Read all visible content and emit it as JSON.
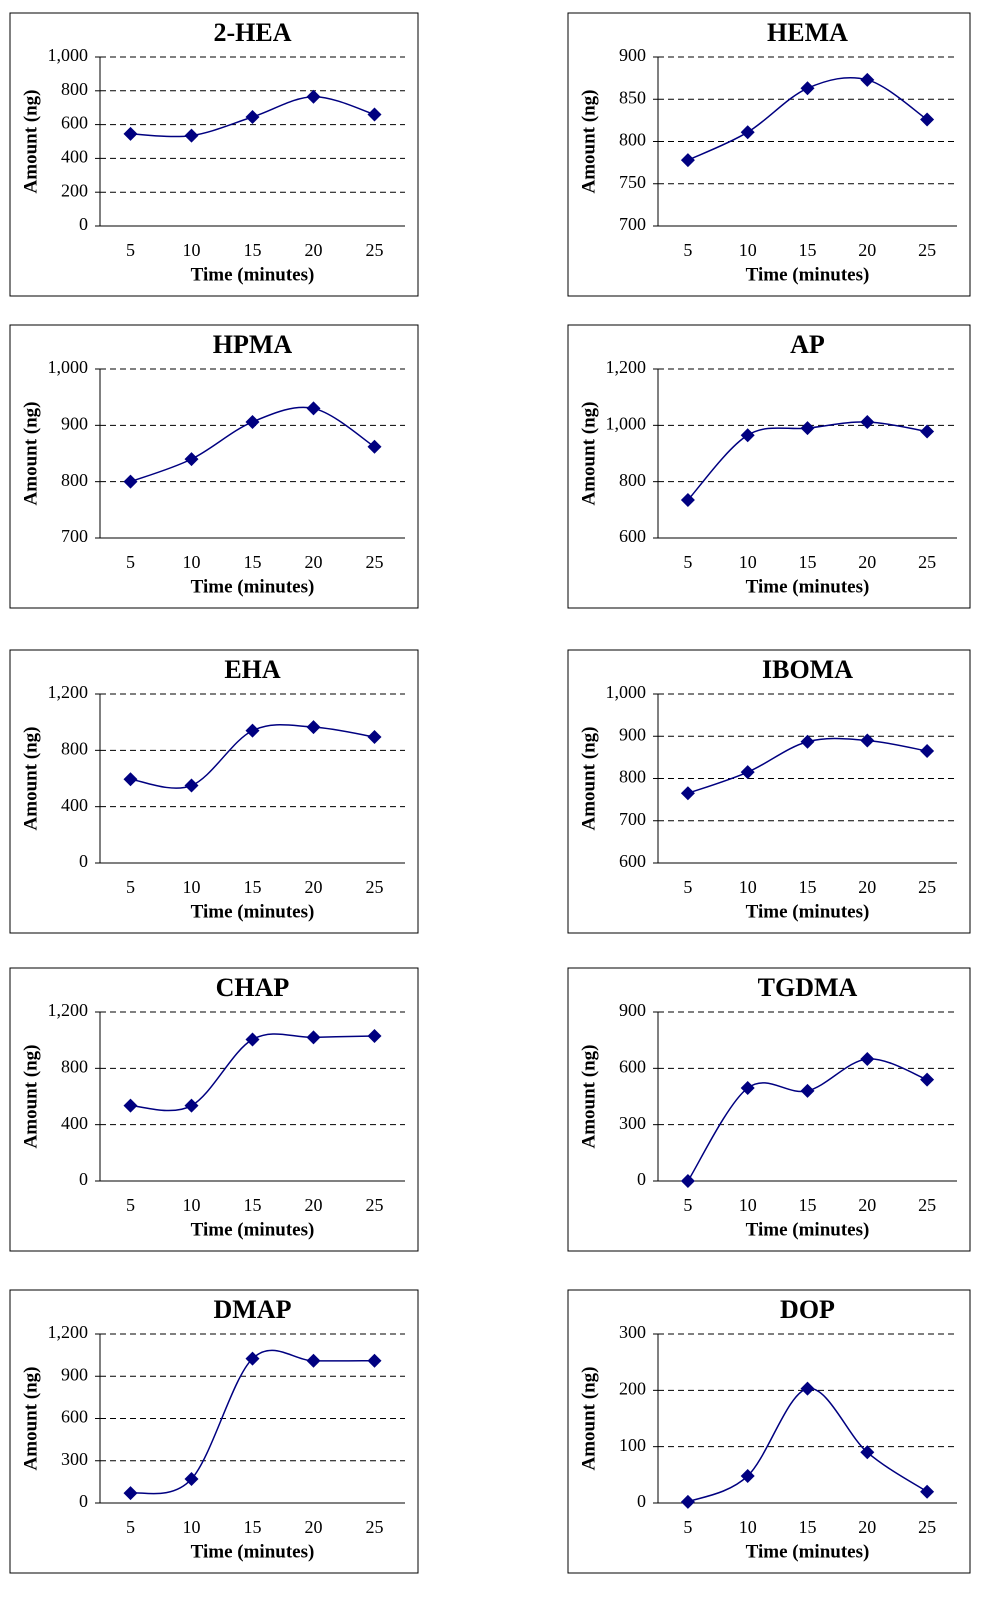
{
  "chart_data": [
    {
      "type": "line",
      "title": "2-HEA",
      "x_label": "Time (minutes)",
      "y_label": "Amount (ng)",
      "categories": [
        "5",
        "10",
        "15",
        "20",
        "25"
      ],
      "series": [
        {
          "color": "#000080",
          "values": [
            545,
            535,
            645,
            765,
            660
          ]
        }
      ],
      "ylim": [
        0,
        1000
      ],
      "yticks": [
        0,
        200,
        400,
        600,
        800,
        {
          "value": 1000,
          "label": "1,000"
        }
      ],
      "grid": true
    },
    {
      "type": "line",
      "title": "HEMA",
      "x_label": "Time (minutes)",
      "y_label": "Amount (ng)",
      "categories": [
        "5",
        "10",
        "15",
        "20",
        "25"
      ],
      "series": [
        {
          "color": "#000080",
          "values": [
            778,
            811,
            863,
            873,
            826
          ]
        }
      ],
      "ylim": [
        700,
        900
      ],
      "yticks": [
        700,
        750,
        800,
        850,
        900
      ],
      "grid": true
    },
    {
      "type": "line",
      "title": "HPMA",
      "x_label": "Time (minutes)",
      "y_label": "Amount (ng)",
      "categories": [
        "5",
        "10",
        "15",
        "20",
        "25"
      ],
      "series": [
        {
          "color": "#000080",
          "values": [
            800,
            840,
            906,
            930,
            862
          ]
        }
      ],
      "ylim": [
        700,
        1000
      ],
      "yticks": [
        700,
        800,
        900,
        {
          "value": 1000,
          "label": "1,000"
        }
      ],
      "grid": true
    },
    {
      "type": "line",
      "title": "AP",
      "x_label": "Time (minutes)",
      "y_label": "Amount (ng)",
      "categories": [
        "5",
        "10",
        "15",
        "20",
        "25"
      ],
      "series": [
        {
          "color": "#000080",
          "values": [
            735,
            965,
            990,
            1012,
            978
          ]
        }
      ],
      "ylim": [
        600,
        1200
      ],
      "yticks": [
        600,
        800,
        {
          "value": 1000,
          "label": "1,000"
        },
        {
          "value": 1200,
          "label": "1,200"
        }
      ],
      "grid": true
    },
    {
      "type": "line",
      "title": "EHA",
      "x_label": "Time (minutes)",
      "y_label": "Amount (ng)",
      "categories": [
        "5",
        "10",
        "15",
        "20",
        "25"
      ],
      "series": [
        {
          "color": "#000080",
          "values": [
            595,
            550,
            940,
            965,
            895
          ]
        }
      ],
      "ylim": [
        0,
        1200
      ],
      "yticks": [
        0,
        400,
        800,
        {
          "value": 1200,
          "label": "1,200"
        }
      ],
      "grid": true
    },
    {
      "type": "line",
      "title": "IBOMA",
      "x_label": "Time (minutes)",
      "y_label": "Amount (ng)",
      "categories": [
        "5",
        "10",
        "15",
        "20",
        "25"
      ],
      "series": [
        {
          "color": "#000080",
          "values": [
            765,
            815,
            887,
            890,
            865
          ]
        }
      ],
      "ylim": [
        600,
        1000
      ],
      "yticks": [
        600,
        700,
        800,
        900,
        {
          "value": 1000,
          "label": "1,000"
        }
      ],
      "grid": true
    },
    {
      "type": "line",
      "title": "CHAP",
      "x_label": "Time (minutes)",
      "y_label": "Amount (ng)",
      "categories": [
        "5",
        "10",
        "15",
        "20",
        "25"
      ],
      "series": [
        {
          "color": "#000080",
          "values": [
            535,
            535,
            1005,
            1020,
            1030
          ]
        }
      ],
      "ylim": [
        0,
        1200
      ],
      "yticks": [
        0,
        400,
        800,
        {
          "value": 1200,
          "label": "1,200"
        }
      ],
      "grid": true
    },
    {
      "type": "line",
      "title": "TGDMA",
      "x_label": "Time (minutes)",
      "y_label": "Amount (ng)",
      "categories": [
        "5",
        "10",
        "15",
        "20",
        "25"
      ],
      "series": [
        {
          "color": "#000080",
          "values": [
            0,
            495,
            480,
            650,
            540
          ]
        }
      ],
      "ylim": [
        0,
        900
      ],
      "yticks": [
        0,
        300,
        600,
        900
      ],
      "grid": true
    },
    {
      "type": "line",
      "title": "DMAP",
      "x_label": "Time (minutes)",
      "y_label": "Amount (ng)",
      "categories": [
        "5",
        "10",
        "15",
        "20",
        "25"
      ],
      "series": [
        {
          "color": "#000080",
          "values": [
            70,
            170,
            1025,
            1010,
            1010
          ]
        }
      ],
      "ylim": [
        0,
        1200
      ],
      "yticks": [
        0,
        300,
        600,
        900,
        {
          "value": 1200,
          "label": "1,200"
        }
      ],
      "grid": true
    },
    {
      "type": "line",
      "title": "DOP",
      "x_label": "Time (minutes)",
      "y_label": "Amount (ng)",
      "categories": [
        "5",
        "10",
        "15",
        "20",
        "25"
      ],
      "series": [
        {
          "color": "#000080",
          "values": [
            2,
            48,
            203,
            90,
            20
          ]
        }
      ],
      "ylim": [
        0,
        300
      ],
      "yticks": [
        0,
        100,
        200,
        300
      ],
      "grid": true
    }
  ]
}
